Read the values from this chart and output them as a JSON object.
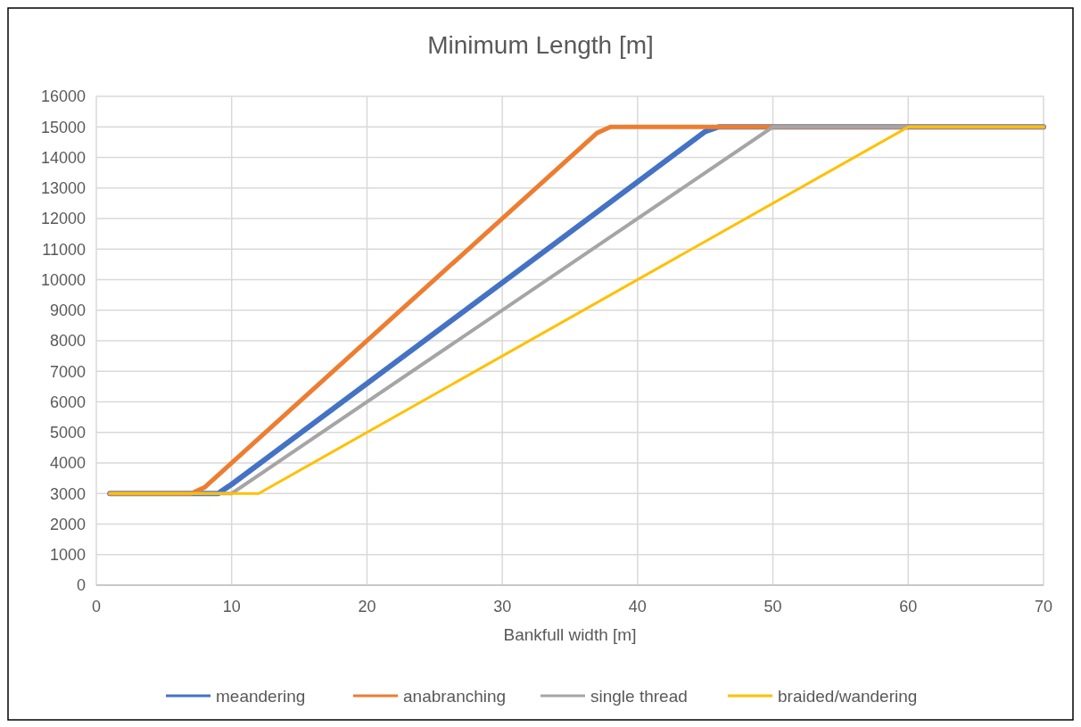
{
  "chart_data": {
    "type": "line",
    "title": "Minimum Length [m]",
    "xlabel": "Bankfull width [m]",
    "xlim": [
      0,
      70
    ],
    "xticks": [
      0,
      10,
      20,
      30,
      40,
      50,
      60,
      70
    ],
    "ylim": [
      0,
      16000
    ],
    "yticks": [
      0,
      1000,
      2000,
      3000,
      4000,
      5000,
      6000,
      7000,
      8000,
      9000,
      10000,
      11000,
      12000,
      13000,
      14000,
      15000,
      16000
    ],
    "grid": true,
    "legend": "bottom",
    "marker": "none",
    "line_style": "solid",
    "series": [
      {
        "name": "meandering",
        "color": "#4472c4",
        "x": [
          1,
          9,
          10,
          45,
          46,
          70
        ],
        "values": [
          3000,
          3000,
          3300,
          14850,
          15000,
          15000
        ]
      },
      {
        "name": "anabranching",
        "color": "#ed7d31",
        "x": [
          1,
          7,
          8,
          37,
          38,
          70
        ],
        "values": [
          3000,
          3000,
          3200,
          14800,
          15000,
          15000
        ]
      },
      {
        "name": "single thread",
        "color": "#a5a5a5",
        "x": [
          1,
          10,
          50,
          70
        ],
        "values": [
          3000,
          3000,
          15000,
          15000
        ]
      },
      {
        "name": "braided/wandering",
        "color": "#ffc000",
        "x": [
          1,
          12,
          60,
          70
        ],
        "values": [
          3000,
          3000,
          15000,
          15000
        ]
      }
    ]
  }
}
